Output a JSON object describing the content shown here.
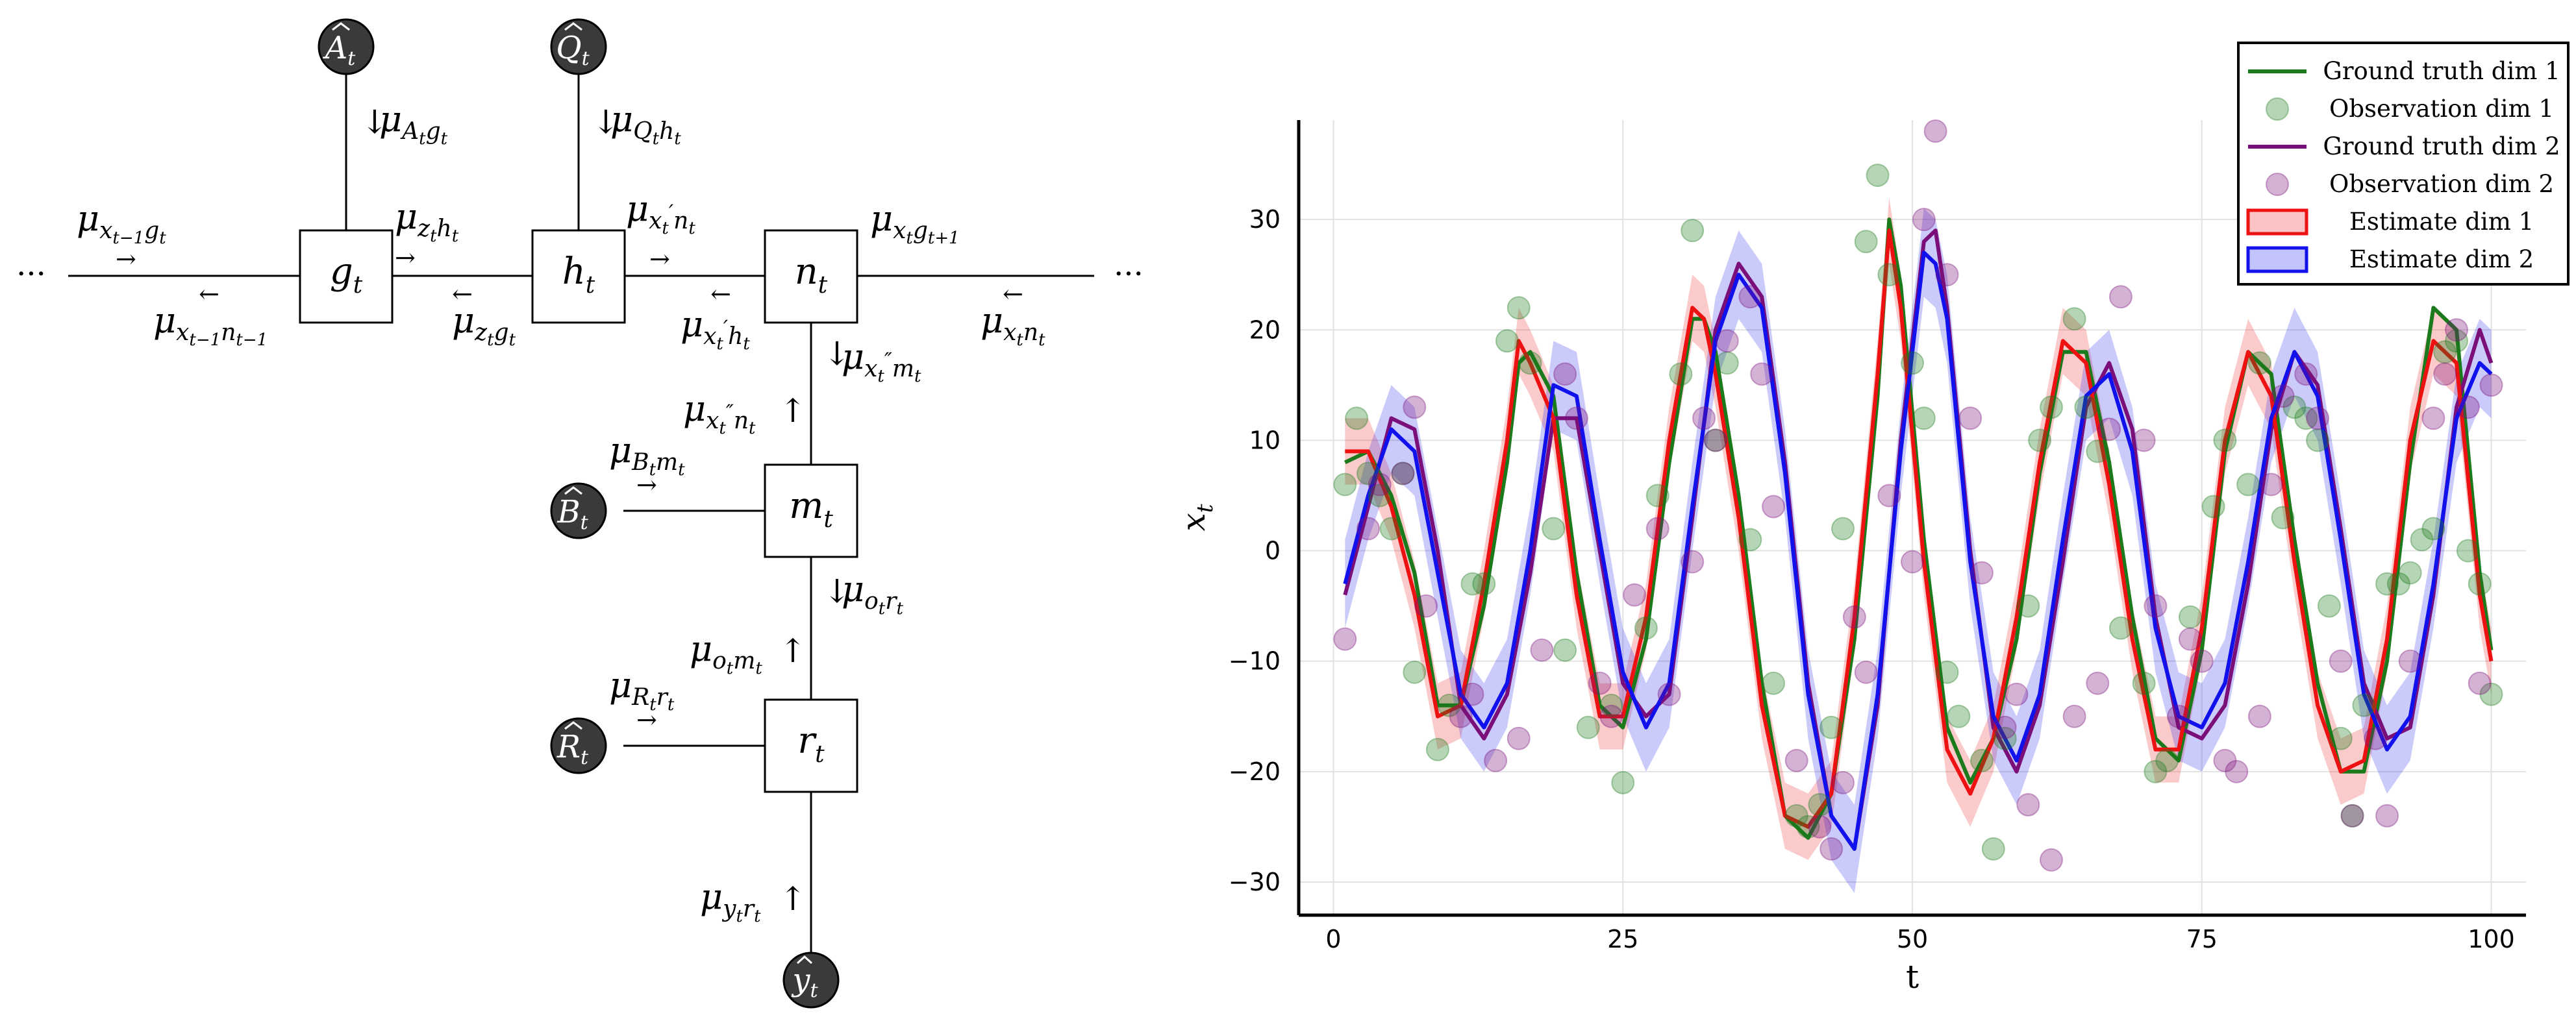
{
  "factor_graph": {
    "nodes": {
      "g": "g",
      "h": "h",
      "n": "n",
      "m": "m",
      "r": "r",
      "sub": "t"
    },
    "priors": {
      "A": "A",
      "Q": "Q",
      "B": "B",
      "R": "R",
      "y": "y",
      "sub": "t"
    },
    "ellipsis": "···",
    "messages": {
      "x_prev_g": {
        "mu": "μ",
        "sub": "x",
        "subsub": "t−1",
        "sub2": "g",
        "subsub2": "t"
      },
      "x_prev_n": {
        "mu": "μ",
        "sub": "x",
        "subsub": "t−1",
        "sub2": "n",
        "subsub2": "t−1"
      },
      "A_g": {
        "mu": "μ",
        "sub": "A",
        "subsub": "t",
        "sub2": "g",
        "subsub2": "t"
      },
      "Q_h": {
        "mu": "μ",
        "sub": "Q",
        "subsub": "t",
        "sub2": "h",
        "subsub2": "t"
      },
      "z_h": {
        "mu": "μ",
        "sub": "z",
        "subsub": "t",
        "sub2": "h",
        "subsub2": "t"
      },
      "z_g": {
        "mu": "μ",
        "sub": "z",
        "subsub": "t",
        "sub2": "g",
        "subsub2": "t"
      },
      "xp_n": {
        "mu": "μ",
        "sub": "x",
        "subsub": "t",
        "prime": "′",
        "sub2": "n",
        "subsub2": "t"
      },
      "xp_h": {
        "mu": "μ",
        "sub": "x",
        "subsub": "t",
        "prime": "′",
        "sub2": "h",
        "subsub2": "t"
      },
      "x_g_next": {
        "mu": "μ",
        "sub": "x",
        "subsub": "t",
        "sub2": "g",
        "subsub2": "t+1"
      },
      "x_n": {
        "mu": "μ",
        "sub": "x",
        "subsub": "t",
        "sub2": "n",
        "subsub2": "t"
      },
      "xpp_m": {
        "mu": "μ",
        "sub": "x",
        "subsub": "t",
        "prime": "″",
        "sub2": "m",
        "subsub2": "t"
      },
      "xpp_n": {
        "mu": "μ",
        "sub": "x",
        "subsub": "t",
        "prime": "″",
        "sub2": "n",
        "subsub2": "t"
      },
      "B_m": {
        "mu": "μ",
        "sub": "B",
        "subsub": "t",
        "sub2": "m",
        "subsub2": "t"
      },
      "o_r": {
        "mu": "μ",
        "sub": "o",
        "subsub": "t",
        "sub2": "r",
        "subsub2": "t"
      },
      "o_m": {
        "mu": "μ",
        "sub": "o",
        "subsub": "t",
        "sub2": "m",
        "subsub2": "t"
      },
      "R_r": {
        "mu": "μ",
        "sub": "R",
        "subsub": "t",
        "sub2": "r",
        "subsub2": "t"
      },
      "y_r": {
        "mu": "μ",
        "sub": "y",
        "subsub": "t",
        "sub2": "r",
        "subsub2": "t"
      }
    },
    "arrows": {
      "right": "→",
      "left": "←",
      "up": "↑",
      "down": "↓"
    }
  },
  "chart_data": {
    "type": "line",
    "xlabel": "t",
    "ylabel": "x",
    "ylabel_sub": "t",
    "xlim": [
      -3,
      103
    ],
    "ylim": [
      -33,
      39
    ],
    "xticks": [
      0,
      25,
      50,
      75,
      100
    ],
    "yticks": [
      -30,
      -20,
      -10,
      0,
      10,
      20,
      30
    ],
    "grid": true,
    "legend_position": "top-right",
    "legend": [
      {
        "label": "Ground truth dim 1",
        "kind": "line",
        "color": "#1b7a1b"
      },
      {
        "label": "Observation dim 1",
        "kind": "marker",
        "color": "#1b7a1b"
      },
      {
        "label": "Ground truth dim 2",
        "kind": "line",
        "color": "#7a0f7a"
      },
      {
        "label": "Observation dim 2",
        "kind": "marker",
        "color": "#7a0f7a"
      },
      {
        "label": "Estimate dim 1",
        "kind": "band",
        "color": "#ee1111"
      },
      {
        "label": "Estimate dim 2",
        "kind": "band",
        "color": "#1111ee"
      }
    ],
    "series": [
      {
        "name": "Ground truth dim 1",
        "kind": "line",
        "color": "#1b7a1b",
        "x": [
          1,
          3,
          5,
          7,
          9,
          11,
          13,
          15,
          16,
          17,
          19,
          21,
          23,
          25,
          27,
          29,
          31,
          32,
          33,
          35,
          37,
          39,
          41,
          43,
          45,
          47,
          48,
          49,
          51,
          53,
          55,
          57,
          59,
          61,
          63,
          65,
          67,
          69,
          71,
          73,
          75,
          77,
          79,
          81,
          83,
          85,
          87,
          89,
          91,
          93,
          95,
          97,
          99,
          100
        ],
        "y": [
          8,
          9,
          5,
          -2,
          -14,
          -14,
          -5,
          8,
          17,
          18,
          14,
          -2,
          -14,
          -16,
          -8,
          8,
          21,
          21,
          18,
          5,
          -12,
          -24,
          -26,
          -22,
          -8,
          14,
          30,
          24,
          1,
          -16,
          -21,
          -17,
          -8,
          7,
          18,
          18,
          8,
          -6,
          -17,
          -19,
          -9,
          9,
          18,
          16,
          1,
          -12,
          -20,
          -20,
          -10,
          8,
          22,
          20,
          -2,
          -9
        ]
      },
      {
        "name": "Ground truth dim 2",
        "kind": "line",
        "color": "#7a0f7a",
        "x": [
          1,
          3,
          5,
          7,
          9,
          11,
          13,
          15,
          17,
          19,
          21,
          23,
          25,
          27,
          29,
          31,
          33,
          35,
          37,
          39,
          41,
          43,
          45,
          47,
          49,
          51,
          52,
          53,
          55,
          57,
          59,
          61,
          63,
          65,
          67,
          69,
          71,
          73,
          75,
          77,
          79,
          81,
          83,
          85,
          87,
          89,
          91,
          93,
          95,
          97,
          99,
          100
        ],
        "y": [
          -4,
          4,
          12,
          11,
          0,
          -14,
          -17,
          -13,
          -2,
          12,
          12,
          0,
          -12,
          -15,
          -13,
          3,
          20,
          26,
          23,
          8,
          -12,
          -24,
          -27,
          -14,
          10,
          28,
          29,
          22,
          0,
          -16,
          -20,
          -14,
          -1,
          13,
          17,
          11,
          -6,
          -16,
          -17,
          -14,
          -3,
          11,
          18,
          15,
          2,
          -12,
          -17,
          -16,
          -4,
          13,
          20,
          17
        ]
      },
      {
        "name": "Estimate dim 1",
        "kind": "line",
        "color": "#ee1111",
        "x": [
          1,
          3,
          5,
          7,
          9,
          11,
          13,
          15,
          16,
          17,
          19,
          21,
          23,
          25,
          27,
          29,
          31,
          32,
          33,
          35,
          37,
          39,
          41,
          43,
          45,
          47,
          48,
          49,
          51,
          53,
          55,
          57,
          59,
          61,
          63,
          65,
          67,
          69,
          71,
          73,
          75,
          77,
          79,
          81,
          83,
          85,
          87,
          89,
          91,
          93,
          95,
          97,
          99,
          100
        ],
        "y": [
          9,
          9,
          4,
          -4,
          -15,
          -14,
          -3,
          10,
          19,
          17,
          12,
          -4,
          -15,
          -15,
          -6,
          10,
          22,
          21,
          16,
          3,
          -14,
          -24,
          -25,
          -22,
          -6,
          16,
          29,
          22,
          -1,
          -18,
          -22,
          -17,
          -6,
          8,
          19,
          17,
          6,
          -8,
          -18,
          -18,
          -7,
          10,
          18,
          14,
          -1,
          -14,
          -20,
          -19,
          -8,
          10,
          19,
          17,
          -4,
          -10
        ],
        "band": 3
      },
      {
        "name": "Estimate dim 2",
        "kind": "line",
        "color": "#1111ee",
        "x": [
          1,
          3,
          5,
          7,
          9,
          11,
          13,
          15,
          17,
          19,
          21,
          23,
          25,
          27,
          29,
          31,
          33,
          35,
          37,
          39,
          41,
          43,
          45,
          47,
          49,
          51,
          52,
          53,
          55,
          57,
          59,
          61,
          63,
          65,
          67,
          69,
          71,
          73,
          75,
          77,
          79,
          81,
          83,
          85,
          87,
          89,
          91,
          93,
          95,
          97,
          99,
          100
        ],
        "y": [
          -3,
          5,
          11,
          9,
          -2,
          -13,
          -16,
          -12,
          0,
          15,
          14,
          1,
          -11,
          -16,
          -12,
          4,
          19,
          25,
          22,
          7,
          -13,
          -24,
          -27,
          -13,
          9,
          27,
          26,
          21,
          -1,
          -15,
          -19,
          -13,
          1,
          14,
          16,
          9,
          -7,
          -15,
          -16,
          -12,
          -1,
          12,
          18,
          14,
          1,
          -13,
          -18,
          -15,
          -3,
          12,
          17,
          16
        ],
        "band": 4
      },
      {
        "name": "Observation dim 1",
        "kind": "scatter",
        "color": "#1b7a1b",
        "x": [
          1,
          2,
          3,
          4,
          5,
          6,
          7,
          9,
          10,
          12,
          13,
          15,
          16,
          17,
          19,
          20,
          22,
          24,
          25,
          27,
          28,
          30,
          31,
          33,
          34,
          36,
          38,
          40,
          41,
          42,
          43,
          44,
          46,
          47,
          48,
          50,
          51,
          53,
          54,
          56,
          57,
          58,
          60,
          61,
          62,
          64,
          65,
          66,
          68,
          70,
          71,
          72,
          74,
          76,
          77,
          79,
          80,
          82,
          83,
          84,
          85,
          86,
          87,
          88,
          89,
          91,
          92,
          93,
          94,
          95,
          96,
          97,
          98,
          99,
          100
        ],
        "y": [
          6,
          12,
          7,
          5,
          2,
          7,
          -11,
          -18,
          -14,
          -3,
          -3,
          19,
          22,
          17,
          2,
          -9,
          -16,
          -14,
          -21,
          -7,
          5,
          16,
          29,
          10,
          17,
          1,
          -12,
          -24,
          -25,
          -23,
          -16,
          2,
          28,
          34,
          25,
          17,
          12,
          -11,
          -15,
          -19,
          -27,
          -17,
          -5,
          10,
          13,
          21,
          13,
          9,
          -7,
          -12,
          -20,
          -19,
          -6,
          4,
          10,
          6,
          17,
          3,
          13,
          12,
          10,
          -5,
          -17,
          -24,
          -14,
          -3,
          -3,
          -2,
          1,
          2,
          18,
          19,
          0,
          -3,
          -13
        ]
      },
      {
        "name": "Observation dim 2",
        "kind": "scatter",
        "color": "#7a0f7a",
        "x": [
          1,
          3,
          4,
          6,
          7,
          8,
          11,
          12,
          14,
          16,
          18,
          20,
          21,
          23,
          24,
          26,
          28,
          29,
          31,
          32,
          33,
          34,
          36,
          37,
          38,
          40,
          42,
          43,
          44,
          45,
          46,
          48,
          50,
          51,
          52,
          53,
          55,
          56,
          58,
          59,
          60,
          62,
          64,
          66,
          67,
          68,
          70,
          71,
          73,
          74,
          75,
          77,
          78,
          80,
          81,
          82,
          84,
          85,
          87,
          88,
          90,
          91,
          93,
          95,
          96,
          97,
          98,
          99,
          100
        ],
        "y": [
          -8,
          2,
          6,
          7,
          13,
          -5,
          -15,
          -13,
          -19,
          -17,
          -9,
          16,
          12,
          -12,
          -15,
          -4,
          2,
          -13,
          -1,
          12,
          10,
          19,
          23,
          16,
          4,
          -19,
          -25,
          -27,
          -21,
          -6,
          -11,
          5,
          -1,
          30,
          38,
          25,
          12,
          -2,
          -16,
          -13,
          -23,
          -28,
          -15,
          -12,
          11,
          23,
          10,
          -5,
          -15,
          -8,
          -10,
          -19,
          -20,
          -15,
          6,
          14,
          16,
          12,
          -10,
          -24,
          -17,
          -24,
          -10,
          12,
          16,
          20,
          13,
          -12,
          15
        ]
      }
    ]
  }
}
